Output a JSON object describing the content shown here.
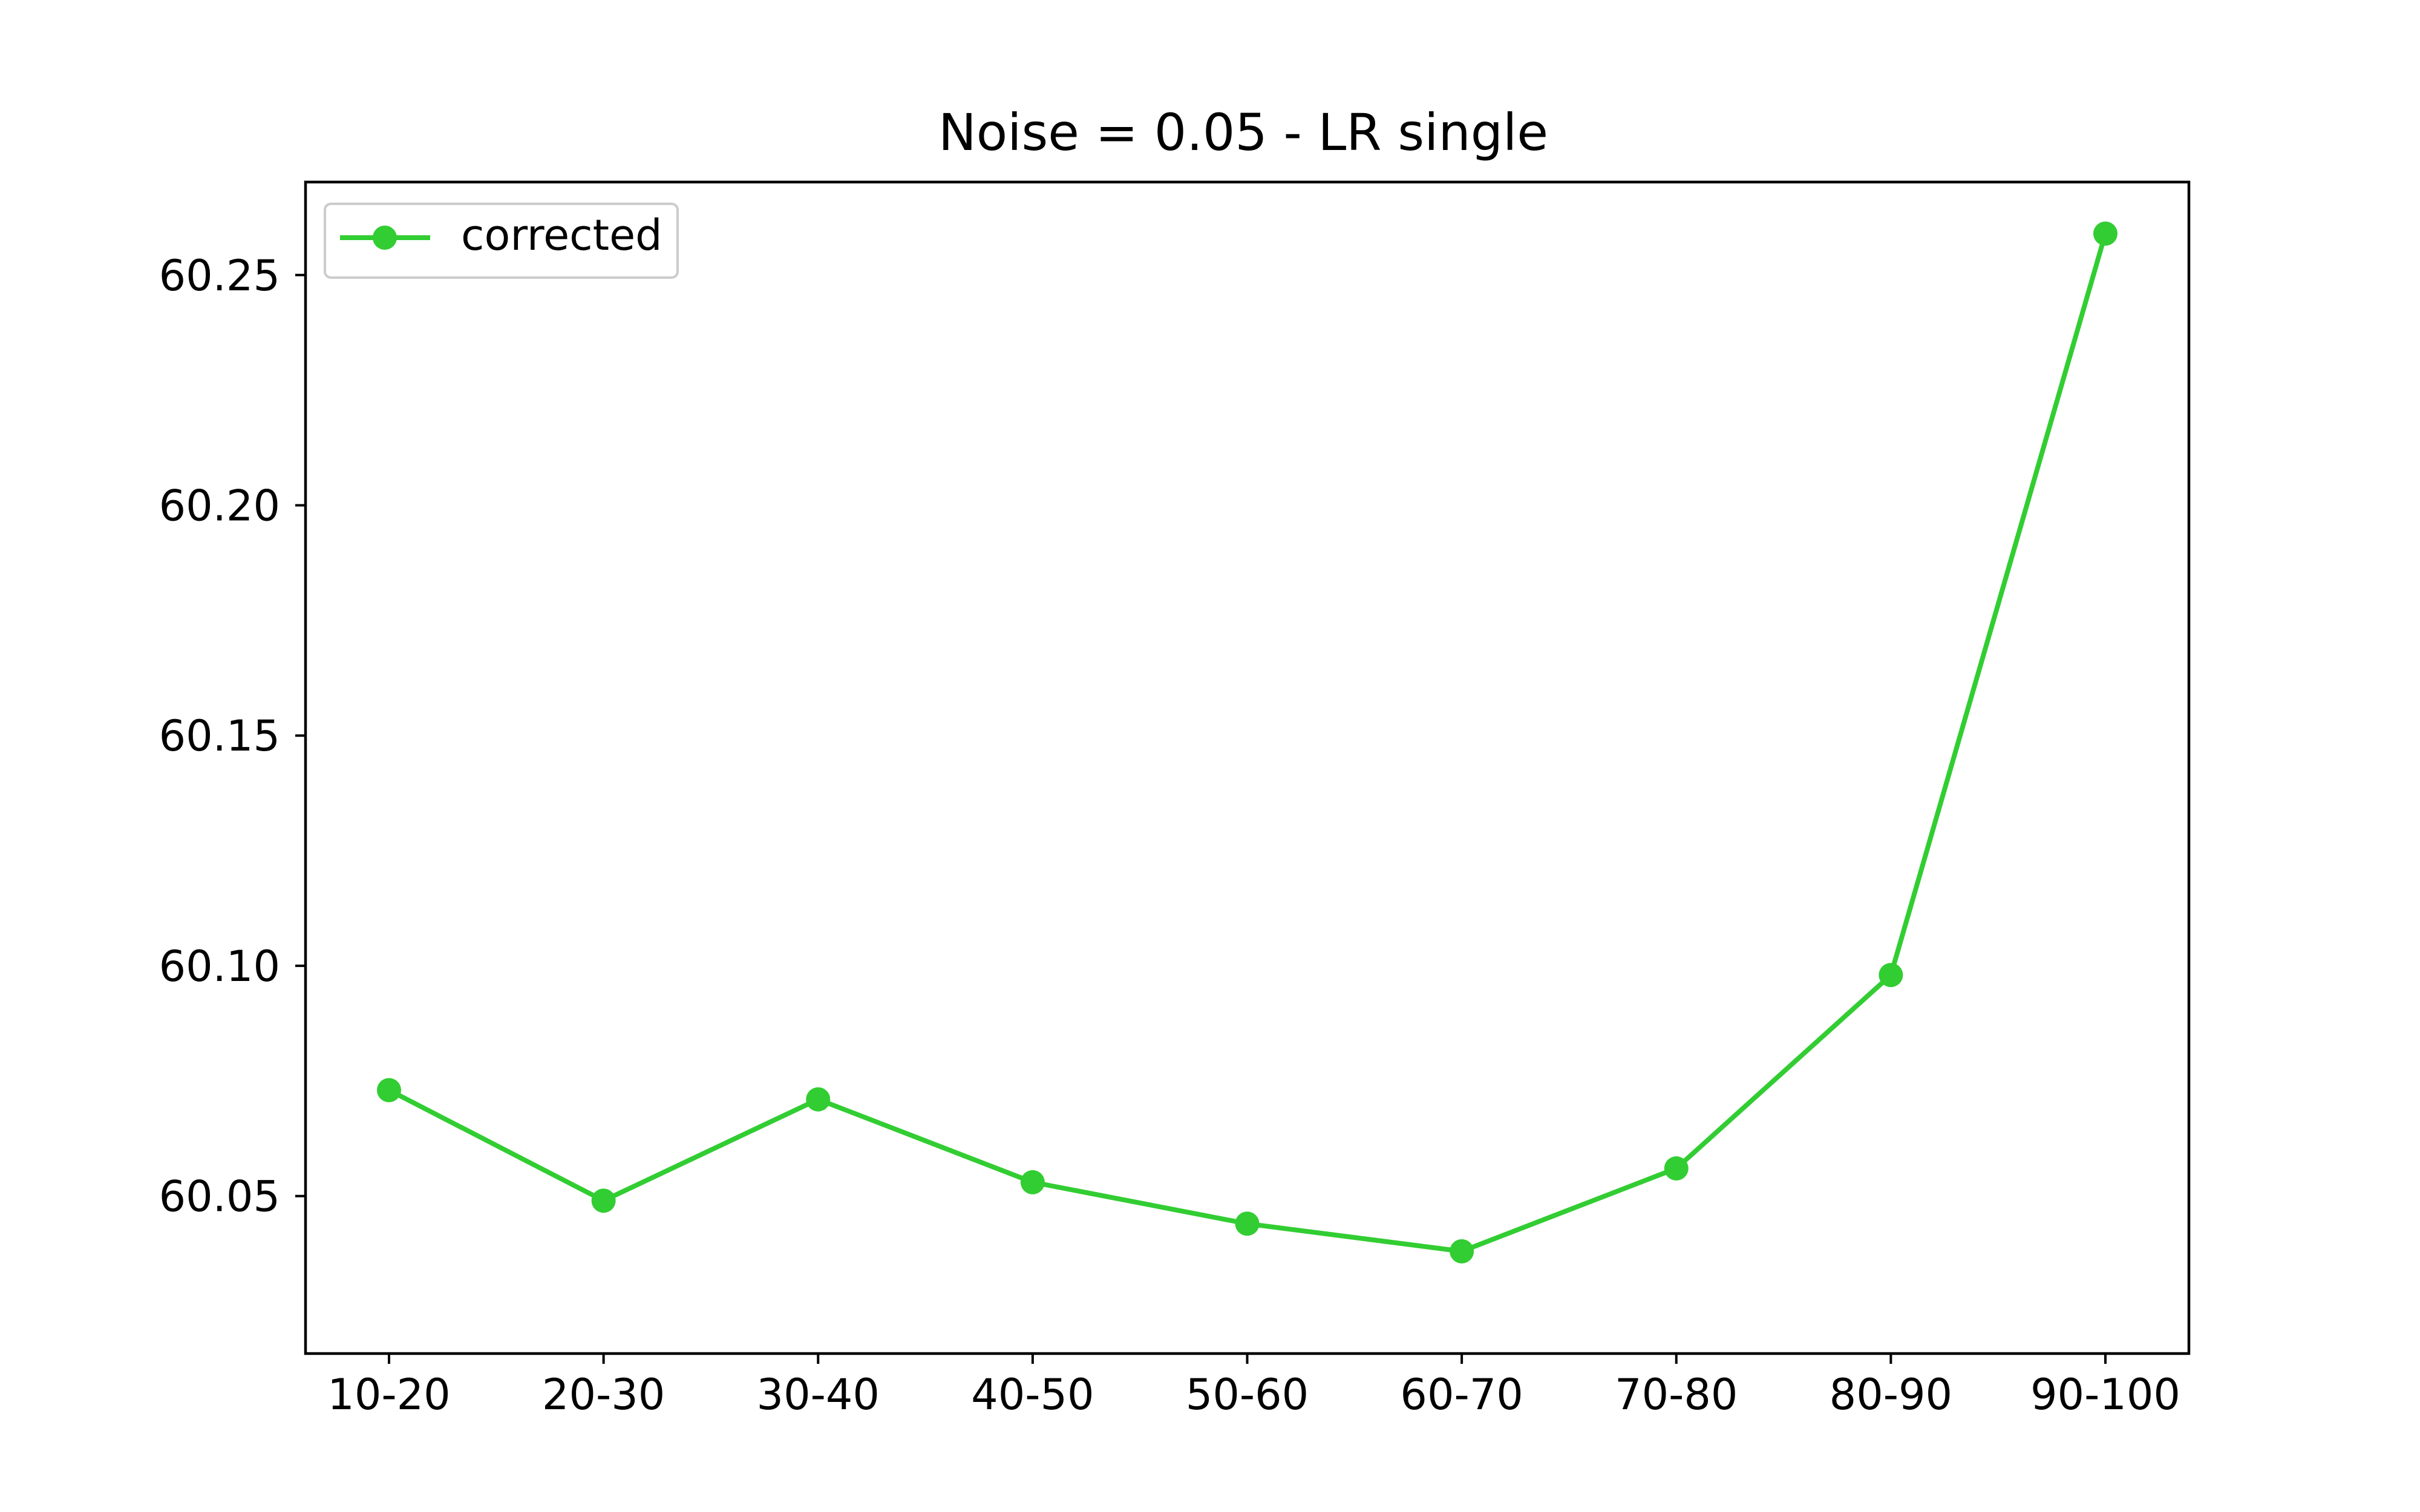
{
  "chart_data": {
    "type": "line",
    "title": "Noise = 0.05 - LR single",
    "xlabel": "",
    "ylabel": "",
    "categories": [
      "10-20",
      "20-30",
      "30-40",
      "40-50",
      "50-60",
      "60-70",
      "70-80",
      "80-90",
      "90-100"
    ],
    "series": [
      {
        "name": "corrected",
        "color": "#32cd32",
        "marker": "circle",
        "values": [
          60.073,
          60.049,
          60.071,
          60.053,
          60.044,
          60.038,
          60.056,
          60.098,
          60.259
        ]
      }
    ],
    "yticks": [
      "60.05",
      "60.10",
      "60.15",
      "60.20",
      "60.25"
    ],
    "ylim": [
      60.0158,
      60.2702
    ],
    "legend": "top-left",
    "grid": false
  }
}
